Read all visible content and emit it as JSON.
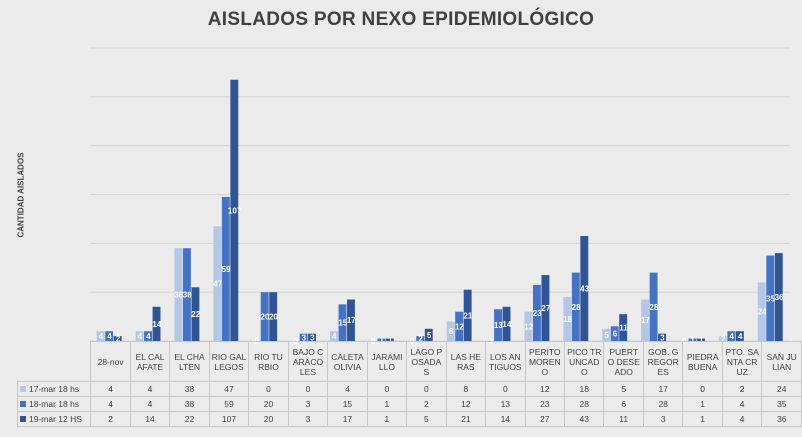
{
  "chart_data": {
    "type": "bar",
    "title": "AISLADOS POR NEXO EPIDEMIOLÓGICO",
    "ylabel": "CANTIDAD AISLADOS",
    "xlabel": "",
    "ylim": [
      0,
      120
    ],
    "grid": true,
    "legend": "data-table",
    "categories": [
      "28-nov",
      "EL CALAFATE",
      "EL CHALTEN",
      "RIO GALLEGOS",
      "RIO TURBIO",
      "BAJO CARACOLES",
      "CALETA OLIVIA",
      "JARAMILLO",
      "LAGO POSADAS",
      "LAS HERAS",
      "LOS ANTIGUOS",
      "PERITO MORENO",
      "PICO TRUNCADO",
      "PUERTO DESEADO",
      "GOB. GREGORES",
      "PIEDRA BUENA",
      "PTO. SANTA CRUZ",
      "SAN JULIAN"
    ],
    "series": [
      {
        "name": "17-mar 18 hs",
        "color": "#b4c7e7",
        "values": [
          4,
          4,
          38,
          47,
          0,
          0,
          4,
          0,
          0,
          8,
          0,
          12,
          18,
          5,
          17,
          0,
          2,
          24
        ]
      },
      {
        "name": "18-mar 18 hs",
        "color": "#4472c4",
        "values": [
          4,
          4,
          38,
          59,
          20,
          3,
          15,
          1,
          2,
          12,
          13,
          23,
          28,
          6,
          28,
          1,
          4,
          35
        ]
      },
      {
        "name": "19-mar 12 HS",
        "color": "#2f5597",
        "values": [
          2,
          14,
          22,
          107,
          20,
          3,
          17,
          1,
          5,
          21,
          14,
          27,
          43,
          11,
          3,
          1,
          4,
          36
        ]
      }
    ]
  }
}
